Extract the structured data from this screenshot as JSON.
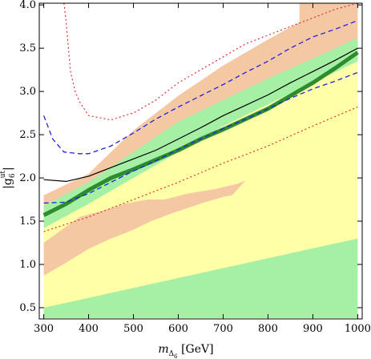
{
  "chart_data": {
    "type": "area",
    "xlabel": {
      "main": "m",
      "sub1": "Δ",
      "sub2": "6",
      "unit": " [GeV]"
    },
    "ylabel": {
      "main": "|g",
      "sub": "6",
      "sup": "ut",
      "close": "|"
    },
    "xlim": [
      290,
      1010
    ],
    "ylim": [
      0.37,
      4.02
    ],
    "x_ticks": [
      300,
      400,
      500,
      600,
      700,
      800,
      900,
      1000
    ],
    "x_tick_labels": [
      "300",
      "400",
      "500",
      "600",
      "700",
      "800",
      "900",
      "1000"
    ],
    "y_ticks": [
      0.5,
      1.0,
      1.5,
      2.0,
      2.5,
      3.0,
      3.5,
      4.0
    ],
    "y_tick_labels": [
      "0.5",
      "1.0",
      "1.5",
      "2.0",
      "2.5",
      "3.0",
      "3.5",
      "4.0"
    ],
    "colors": {
      "yellow": "#ffffa8",
      "green": "#a6f0a6",
      "salmon": "#f5c8a4",
      "thick_green": "#2e8b2e",
      "blue_dash": "#2222dd",
      "red_dot": "#dd2222",
      "black": "#000000"
    },
    "regions": [
      {
        "name": "yellow-band",
        "color": "yellow",
        "upper": [
          [
            300,
            1.72
          ],
          [
            1000,
            3.8
          ]
        ],
        "lower": [
          [
            300,
            0.38
          ],
          [
            1000,
            0.38
          ]
        ]
      },
      {
        "name": "salmon-upper-band",
        "color": "salmon",
        "upper": [
          [
            300,
            1.8
          ],
          [
            400,
            2.05
          ],
          [
            500,
            2.55
          ],
          [
            600,
            2.95
          ],
          [
            700,
            3.3
          ],
          [
            800,
            3.6
          ],
          [
            870,
            3.8
          ],
          [
            870,
            4.02
          ],
          [
            1000,
            4.02
          ],
          [
            1000,
            3.8
          ]
        ],
        "lower": [
          [
            300,
            1.6
          ],
          [
            1000,
            3.35
          ]
        ]
      },
      {
        "name": "green-band",
        "color": "green",
        "upper": [
          [
            300,
            1.68
          ],
          [
            400,
            1.95
          ],
          [
            500,
            2.3
          ],
          [
            600,
            2.65
          ],
          [
            700,
            2.9
          ],
          [
            800,
            3.15
          ],
          [
            900,
            3.38
          ],
          [
            1000,
            3.62
          ]
        ],
        "lower": [
          [
            300,
            1.42
          ],
          [
            400,
            1.7
          ],
          [
            500,
            2.0
          ],
          [
            600,
            2.3
          ],
          [
            700,
            2.6
          ],
          [
            800,
            2.85
          ],
          [
            900,
            3.1
          ],
          [
            1000,
            3.35
          ]
        ]
      },
      {
        "name": "salmon-lower-patch",
        "color": "salmon",
        "upper": [
          [
            300,
            1.25
          ],
          [
            340,
            1.4
          ],
          [
            380,
            1.55
          ],
          [
            430,
            1.62
          ],
          [
            480,
            1.7
          ],
          [
            530,
            1.75
          ],
          [
            570,
            1.75
          ],
          [
            620,
            1.82
          ],
          [
            680,
            1.87
          ],
          [
            730,
            1.93
          ],
          [
            750,
            1.97
          ]
        ],
        "lower": [
          [
            750,
            1.97
          ],
          [
            720,
            1.8
          ],
          [
            700,
            1.78
          ],
          [
            660,
            1.72
          ],
          [
            620,
            1.65
          ],
          [
            580,
            1.58
          ],
          [
            540,
            1.5
          ],
          [
            500,
            1.4
          ],
          [
            450,
            1.3
          ],
          [
            400,
            1.18
          ],
          [
            350,
            1.02
          ],
          [
            300,
            0.87
          ]
        ]
      },
      {
        "name": "green-lower-band",
        "color": "green",
        "upper": [
          [
            300,
            0.5
          ],
          [
            1000,
            1.3
          ]
        ],
        "lower": [
          [
            300,
            0.38
          ],
          [
            1000,
            0.38
          ]
        ]
      }
    ],
    "series": [
      {
        "color": "thick_green",
        "style": "solid-thick",
        "x": [
          300,
          350,
          400,
          450,
          500,
          550,
          600,
          650,
          700,
          750,
          800,
          850,
          900,
          950,
          1000
        ],
        "y": [
          1.57,
          1.7,
          1.86,
          2.0,
          2.1,
          2.21,
          2.32,
          2.45,
          2.56,
          2.68,
          2.8,
          2.95,
          3.1,
          3.27,
          3.45
        ]
      },
      {
        "color": "black",
        "style": "solid-thin",
        "x": [
          300,
          350,
          400,
          450,
          500,
          550,
          600,
          650,
          700,
          750,
          800,
          850,
          900,
          950,
          1000
        ],
        "y": [
          1.98,
          1.96,
          2.02,
          2.12,
          2.22,
          2.32,
          2.45,
          2.58,
          2.72,
          2.84,
          2.96,
          3.1,
          3.23,
          3.36,
          3.5
        ]
      },
      {
        "color": "blue_dash",
        "style": "dashed",
        "x": [
          300,
          320,
          345,
          380,
          400,
          450,
          500,
          550,
          600,
          650,
          700,
          750,
          800,
          850,
          900,
          950,
          1000
        ],
        "y": [
          2.72,
          2.45,
          2.3,
          2.28,
          2.28,
          2.37,
          2.52,
          2.68,
          2.82,
          2.95,
          3.08,
          3.22,
          3.35,
          3.5,
          3.63,
          3.72,
          3.82
        ]
      },
      {
        "color": "blue_dash",
        "style": "dashed",
        "x": [
          300,
          350,
          400,
          450,
          500,
          550,
          600,
          650,
          700,
          750,
          800,
          850,
          900,
          950,
          1000
        ],
        "y": [
          1.71,
          1.72,
          1.82,
          1.95,
          2.08,
          2.2,
          2.33,
          2.45,
          2.57,
          2.68,
          2.8,
          2.92,
          3.03,
          3.12,
          3.22
        ]
      },
      {
        "color": "red_dot",
        "style": "dotted",
        "x": [
          345,
          350,
          355,
          360,
          370,
          380,
          400,
          420,
          450,
          480,
          500,
          550,
          600,
          650,
          700,
          750,
          800,
          850,
          900,
          950,
          1000
        ],
        "y": [
          4.02,
          3.8,
          3.5,
          3.22,
          3.0,
          2.88,
          2.72,
          2.7,
          2.67,
          2.72,
          2.75,
          2.9,
          3.1,
          3.25,
          3.4,
          3.55,
          3.65,
          3.75,
          3.85,
          3.95,
          4.02
        ]
      },
      {
        "color": "red_dot",
        "style": "dotted",
        "x": [
          300,
          400,
          500,
          600,
          700,
          800,
          900,
          1000
        ],
        "y": [
          1.38,
          1.55,
          1.75,
          1.95,
          2.17,
          2.37,
          2.6,
          2.82
        ]
      }
    ]
  }
}
